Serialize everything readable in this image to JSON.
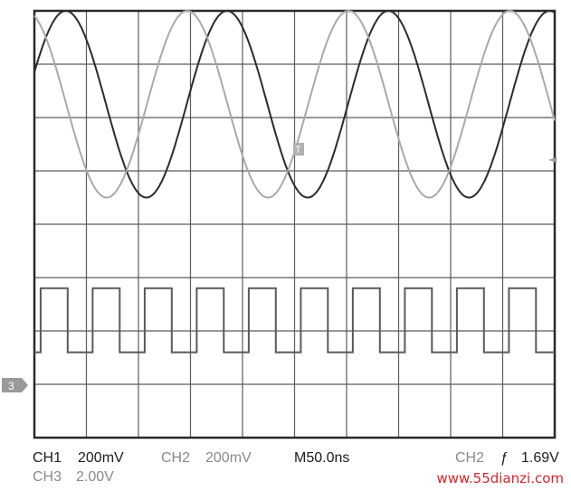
{
  "chart_data": {
    "type": "line",
    "title": "",
    "grid": true,
    "divisions": {
      "horizontal": 10,
      "vertical": 8
    },
    "series": [
      {
        "name": "CH1",
        "kind": "sine",
        "color": "#2b2b2b",
        "amplitude_divisions": 1.75,
        "center_division": 1.75,
        "period_divisions": 3.1,
        "phase": 0.35
      },
      {
        "name": "CH2",
        "kind": "sine",
        "color": "#a9a9a9",
        "amplitude_divisions": 1.75,
        "center_division": 1.75,
        "period_divisions": 3.1,
        "phase": 1.9
      },
      {
        "name": "CH3",
        "kind": "square",
        "color": "#5a5a5a",
        "high_division": 5.2,
        "low_division": 6.4,
        "period_divisions": 1.0,
        "duty": 0.52,
        "start_division": 0.12
      }
    ],
    "markers": {
      "ch3_ground": "3",
      "trigger_right": "◄",
      "trigger_top": "T"
    }
  },
  "readouts": {
    "ch1": "CH1",
    "ch1_scale": "200mV",
    "ch2": "CH2",
    "ch2_scale": "200mV",
    "timebase": "M50.0ns",
    "trigger_source": "CH2",
    "trigger_level": "1.69V",
    "ch3": "CH3",
    "ch3_scale": "2.00V"
  },
  "watermark": "www.55dianzi.com"
}
